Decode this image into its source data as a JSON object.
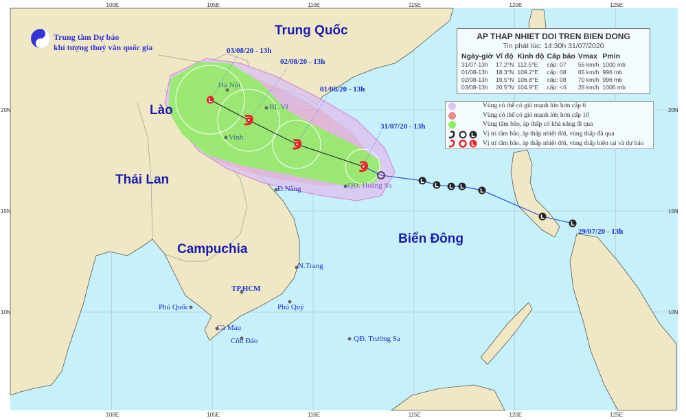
{
  "logo": {
    "line1": "Trung tâm Dự báo",
    "line2": "khí tượng thuỷ văn quốc gia",
    "badge": "KTVN"
  },
  "axes": {
    "lon_labels": [
      "100E",
      "105E",
      "110E",
      "115E",
      "120E",
      "125E"
    ],
    "lat_labels": [
      "20N",
      "15N",
      "10N"
    ]
  },
  "countries": {
    "china": "Trung Quốc",
    "laos": "Lào",
    "thailand": "Thái Lan",
    "cambodia": "Campuchia",
    "sea": "Biển Đông"
  },
  "places": {
    "hanoi": "Hà Nội",
    "blvi": "BL VI",
    "vinh": "Vinh",
    "danang": "Đ.Nẵng",
    "hoangsa": "QĐ. Hoàng Sa",
    "nhatrang": "N.Trang",
    "hcm": "TP.HCM",
    "phuquoc": "Phú Quốc",
    "phuquy": "Phú Quý",
    "camau": "Cà Mau",
    "condao": "Côn Đảo",
    "truongsa": "QĐ. Trường Sa"
  },
  "track_labels": {
    "d0308": "03/08/20 - 13h",
    "d0208": "02/08/20 - 13h",
    "d0108": "01/08/20 - 13h",
    "d3107": "31/07/20 - 13h",
    "d2907": "29/07/20 - 13h"
  },
  "info": {
    "title": "AP THAP NHIET DOI TREN BIEN DONG",
    "issued": "Tin phát lúc: 14:30h 31/07/2020",
    "headers": [
      "Ngày-giờ",
      "Vĩ độ",
      "Kinh độ",
      "Cấp bão",
      "Vmax",
      "Pmin"
    ],
    "rows": [
      [
        "31/07-13h",
        "17.2°N",
        "112.5°E",
        "cấp: 07",
        "56 km/h",
        "1000 mb"
      ],
      [
        "01/08-13h",
        "18.3°N",
        "109.2°E",
        "cấp: 08",
        "65 km/h",
        "996 mb"
      ],
      [
        "02/08-13h",
        "19.5°N",
        "106.8°E",
        "cấp: 08",
        "70 km/h",
        "996 mb"
      ],
      [
        "03/08-13h",
        "20.5°N",
        "104.9°E",
        "cấp: <6",
        "28 km/h",
        "1006 mb"
      ]
    ]
  },
  "legend": {
    "items": [
      "Vùng có thể có gió mạnh lớn hơn cấp 6",
      "Vùng có thể có gió mạnh lớn hơn cấp 10",
      "Vùng tâm bão, áp thấp có khả năng đi qua",
      "Vị trí tâm bão, áp thấp nhiệt đới, vùng thấp đã qua",
      "Vị trí tâm bão, áp thấp nhiệt đới, vùng thấp hiện tại và dự báo"
    ],
    "colors": {
      "cap6": "#dcc3f0",
      "cap10": "#e68a8a",
      "center": "#8ef060",
      "past": "#222222",
      "forecast": "#e8232a"
    }
  },
  "forecast_track": [
    {
      "lat": 17.2,
      "lon": 112.5,
      "symbol": "storm"
    },
    {
      "lat": 18.3,
      "lon": 109.2,
      "symbol": "storm"
    },
    {
      "lat": 19.5,
      "lon": 106.8,
      "symbol": "storm"
    },
    {
      "lat": 20.5,
      "lon": 104.9,
      "symbol": "low"
    }
  ],
  "past_track": [
    {
      "lat": 14.39,
      "lon": 122.88,
      "symbol": "low"
    },
    {
      "lat": 14.73,
      "lon": 121.38,
      "symbol": "low"
    },
    {
      "lat": 16.02,
      "lon": 118.38,
      "symbol": "low"
    },
    {
      "lat": 16.22,
      "lon": 117.39,
      "symbol": "low"
    },
    {
      "lat": 16.22,
      "lon": 116.85,
      "symbol": "low"
    },
    {
      "lat": 16.29,
      "lon": 116.13,
      "symbol": "low"
    },
    {
      "lat": 16.5,
      "lon": 115.42,
      "symbol": "low"
    },
    {
      "lat": 16.77,
      "lon": 113.37,
      "symbol": "depression"
    }
  ]
}
